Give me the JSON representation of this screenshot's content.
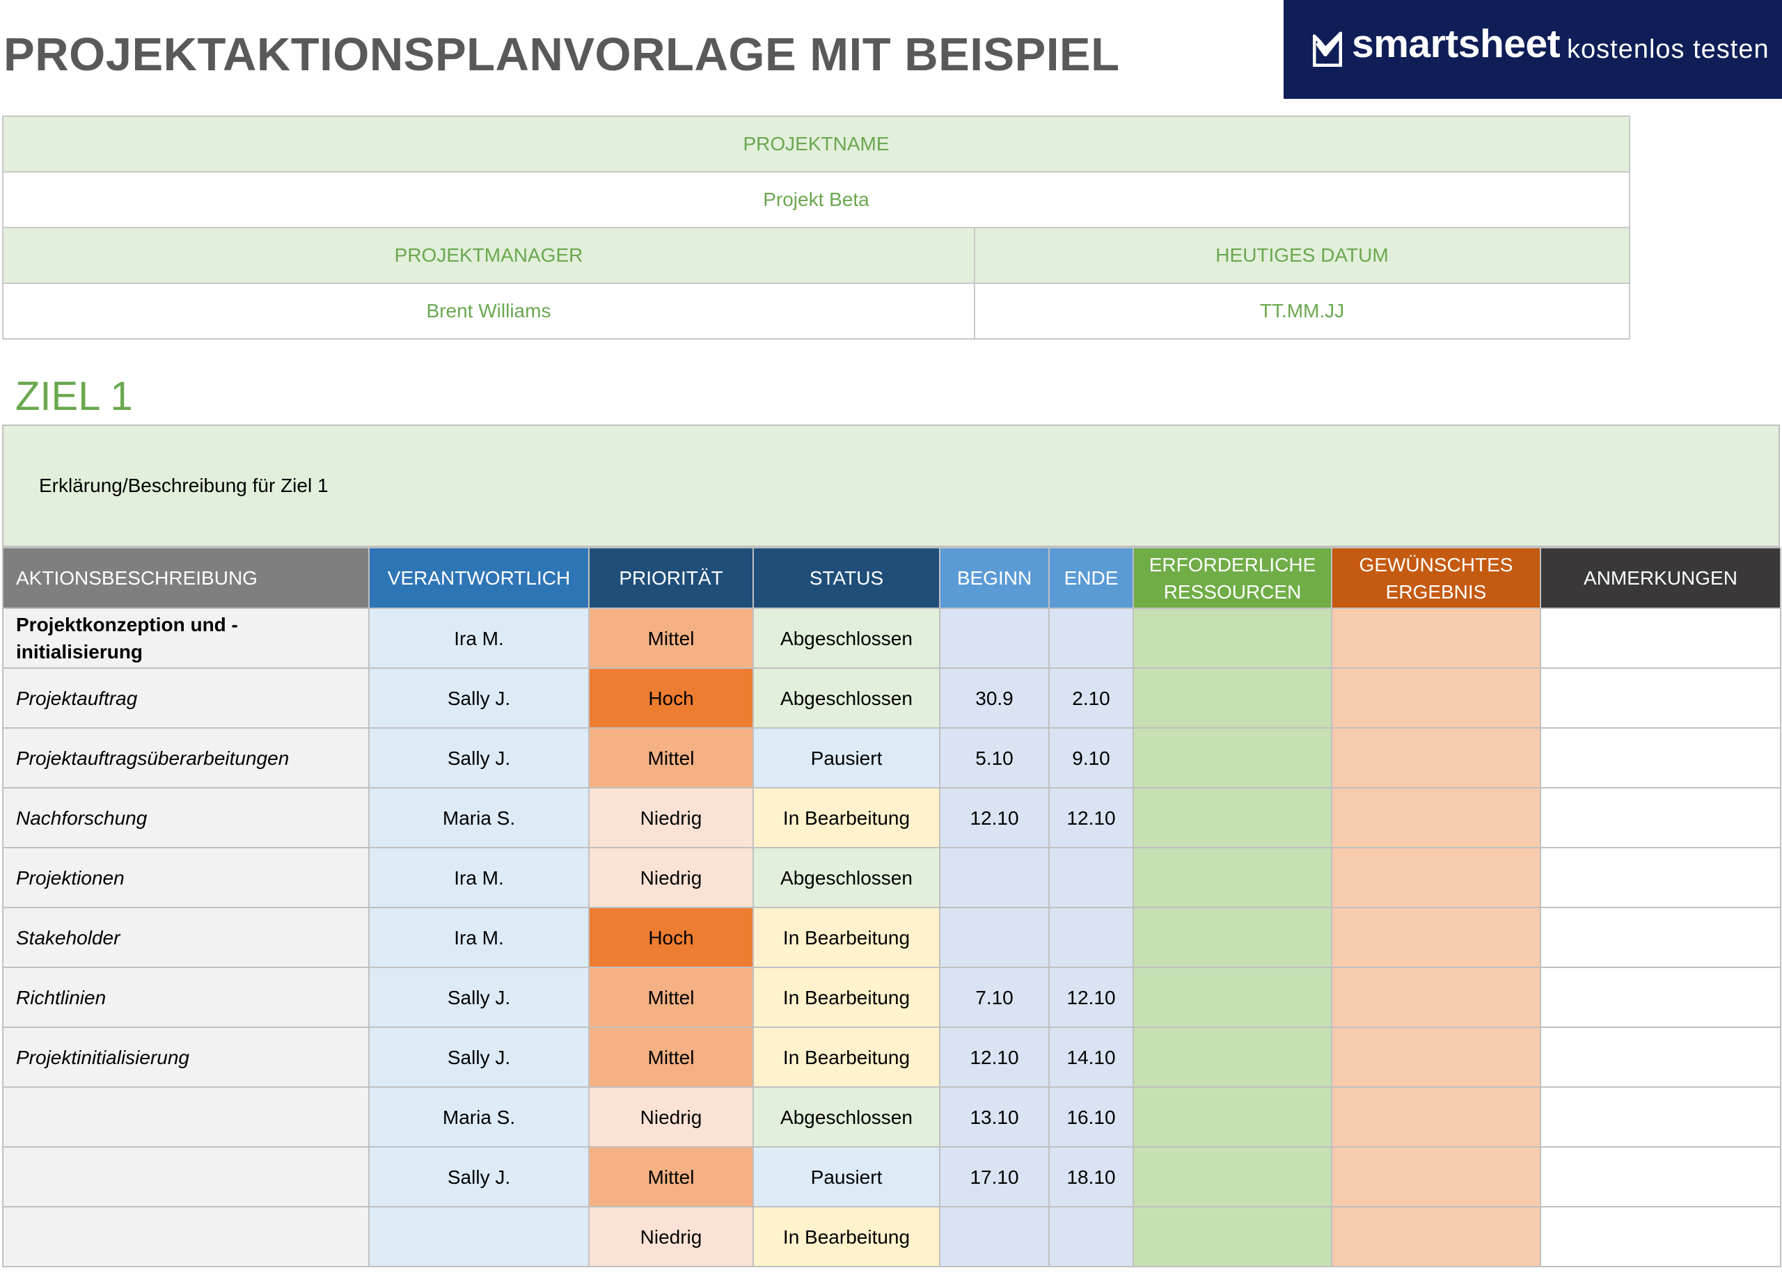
{
  "title": "PROJEKTAKTIONSPLANVORLAGE MIT BEISPIEL",
  "logo": {
    "brand": "smartsheet",
    "cta": "kostenlos testen"
  },
  "project": {
    "name_label": "PROJEKTNAME",
    "name_value": "Projekt Beta",
    "manager_label": "PROJEKTMANAGER",
    "manager_value": "Brent Williams",
    "date_label": "HEUTIGES DATUM",
    "date_value": "TT.MM.JJ"
  },
  "goal": {
    "title": "ZIEL 1",
    "description": "Erklärung/Beschreibung für Ziel 1"
  },
  "columns": [
    "AKTIONSBESCHREIBUNG",
    "VERANTWORTLICH",
    "PRIORITÄT",
    "STATUS",
    "BEGINN",
    "ENDE",
    "ERFORDERLICHE RESSOURCEN",
    "GEWÜNSCHTES ERGEBNIS",
    "ANMERKUNGEN"
  ],
  "column_colors": [
    "#7f7f7f",
    "#2e75b6",
    "#1f4e79",
    "#1f4e79",
    "#5b9bd5",
    "#5b9bd5",
    "#70ad47",
    "#c55a11",
    "#3a3838"
  ],
  "priority_colors": {
    "Hoch": "#ed7d31",
    "Mittel": "#f4b183",
    "Niedrig": "#fbe2d5"
  },
  "status_colors": {
    "Abgeschlossen": "#e2efda",
    "Pausiert": "#ddebf7",
    "In Bearbeitung": "#fff2cc"
  },
  "cell_colors": {
    "owner": "#ddebf7",
    "dates": "#dae3f3",
    "resources": "#c6e0b4",
    "result": "#f8cbad",
    "notes": "#ffffff"
  },
  "rows": [
    {
      "desc": "Projektkonzeption und -initialisierung",
      "bold": true,
      "owner": "Ira M.",
      "priority": "Mittel",
      "status": "Abgeschlossen",
      "start": "",
      "end": ""
    },
    {
      "desc": "Projektauftrag",
      "owner": "Sally J.",
      "priority": "Hoch",
      "status": "Abgeschlossen",
      "start": "30.9",
      "end": "2.10"
    },
    {
      "desc": "Projektauftragsüberarbeitungen",
      "owner": "Sally J.",
      "priority": "Mittel",
      "status": "Pausiert",
      "start": "5.10",
      "end": "9.10"
    },
    {
      "desc": "Nachforschung",
      "owner": "Maria S.",
      "priority": "Niedrig",
      "status": "In Bearbeitung",
      "start": "12.10",
      "end": "12.10"
    },
    {
      "desc": "Projektionen",
      "owner": "Ira M.",
      "priority": "Niedrig",
      "status": "Abgeschlossen",
      "start": "",
      "end": ""
    },
    {
      "desc": "Stakeholder",
      "owner": "Ira M.",
      "priority": "Hoch",
      "status": "In Bearbeitung",
      "start": "",
      "end": ""
    },
    {
      "desc": "Richtlinien",
      "owner": "Sally J.",
      "priority": "Mittel",
      "status": "In Bearbeitung",
      "start": "7.10",
      "end": "12.10"
    },
    {
      "desc": "Projektinitialisierung",
      "owner": "Sally J.",
      "priority": "Mittel",
      "status": "In Bearbeitung",
      "start": "12.10",
      "end": "14.10"
    },
    {
      "desc": "",
      "owner": "Maria S.",
      "priority": "Niedrig",
      "status": "Abgeschlossen",
      "start": "13.10",
      "end": "16.10"
    },
    {
      "desc": "",
      "owner": "Sally J.",
      "priority": "Mittel",
      "status": "Pausiert",
      "start": "17.10",
      "end": "18.10"
    },
    {
      "desc": "",
      "owner": "",
      "priority": "Niedrig",
      "status": "In Bearbeitung",
      "start": "",
      "end": ""
    }
  ]
}
